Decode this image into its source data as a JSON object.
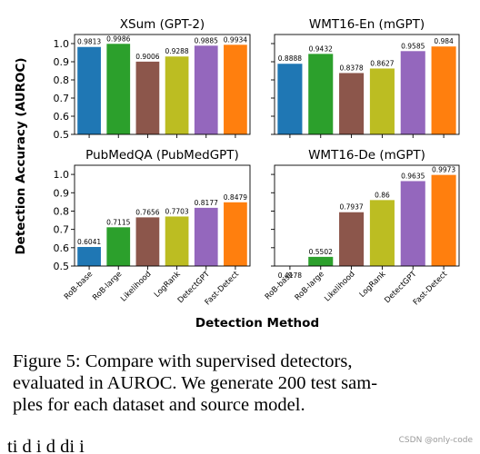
{
  "figure": {
    "ylabel": "Detection Accuracy (AUROC)",
    "xlabel": "Detection Method"
  },
  "chart_data": [
    {
      "type": "bar",
      "title": "XSum (GPT-2)",
      "categories": [
        "RoB-base",
        "RoB-large",
        "Likelihood",
        "LogRank",
        "DetectGPT",
        "Fast-Detect"
      ],
      "values": [
        0.9813,
        0.9986,
        0.9006,
        0.9288,
        0.9885,
        0.9934
      ],
      "value_labels": [
        "0.9813",
        "0.9986",
        "0.9006",
        "0.9288",
        "0.9885",
        "0.9934"
      ],
      "ylim": [
        0.5,
        1.05
      ],
      "yticks": [
        "0.5",
        "0.6",
        "0.7",
        "0.8",
        "0.9",
        "1.0"
      ],
      "colors": [
        "#1f77b4",
        "#2ca02c",
        "#8c564b",
        "#bcbd22",
        "#9467bd",
        "#ff7f0e"
      ]
    },
    {
      "type": "bar",
      "title": "WMT16-En (mGPT)",
      "categories": [
        "RoB-base",
        "RoB-large",
        "Likelihood",
        "LogRank",
        "DetectGPT",
        "Fast-Detect"
      ],
      "values": [
        0.8888,
        0.9432,
        0.8378,
        0.8627,
        0.9585,
        0.984
      ],
      "value_labels": [
        "0.8888",
        "0.9432",
        "0.8378",
        "0.8627",
        "0.9585",
        "0.984"
      ],
      "ylim": [
        0.5,
        1.05
      ],
      "colors": [
        "#1f77b4",
        "#2ca02c",
        "#8c564b",
        "#bcbd22",
        "#9467bd",
        "#ff7f0e"
      ]
    },
    {
      "type": "bar",
      "title": "PubMedQA (PubMedGPT)",
      "categories": [
        "RoB-base",
        "RoB-large",
        "Likelihood",
        "LogRank",
        "DetectGPT",
        "Fast-Detect"
      ],
      "values": [
        0.6041,
        0.7115,
        0.7656,
        0.7703,
        0.8177,
        0.8479
      ],
      "value_labels": [
        "0.6041",
        "0.7115",
        "0.7656",
        "0.7703",
        "0.8177",
        "0.8479"
      ],
      "ylim": [
        0.5,
        1.05
      ],
      "yticks": [
        "0.5",
        "0.6",
        "0.7",
        "0.8",
        "0.9",
        "1.0"
      ],
      "colors": [
        "#1f77b4",
        "#2ca02c",
        "#8c564b",
        "#bcbd22",
        "#9467bd",
        "#ff7f0e"
      ]
    },
    {
      "type": "bar",
      "title": "WMT16-De (mGPT)",
      "categories": [
        "RoB-base",
        "RoB-large",
        "Likelihood",
        "LogRank",
        "DetectGPT",
        "Fast-Detect"
      ],
      "values": [
        0.4178,
        0.5502,
        0.7937,
        0.86,
        0.9635,
        0.9973
      ],
      "value_labels": [
        "0.4178",
        "0.5502",
        "0.7937",
        "0.86",
        "0.9635",
        "0.9973"
      ],
      "ylim": [
        0.5,
        1.05
      ],
      "colors": [
        "#1f77b4",
        "#2ca02c",
        "#8c564b",
        "#bcbd22",
        "#9467bd",
        "#ff7f0e"
      ]
    }
  ],
  "caption": {
    "line1": "Figure 5:  Compare with supervised detectors,",
    "line2": "evaluated in AUROC. We generate 200 test sam-",
    "line3": "ples for each dataset and source model."
  },
  "cutoff_text": "ti                                                          d         i              d         di                         i",
  "watermark": "CSDN @only-code"
}
